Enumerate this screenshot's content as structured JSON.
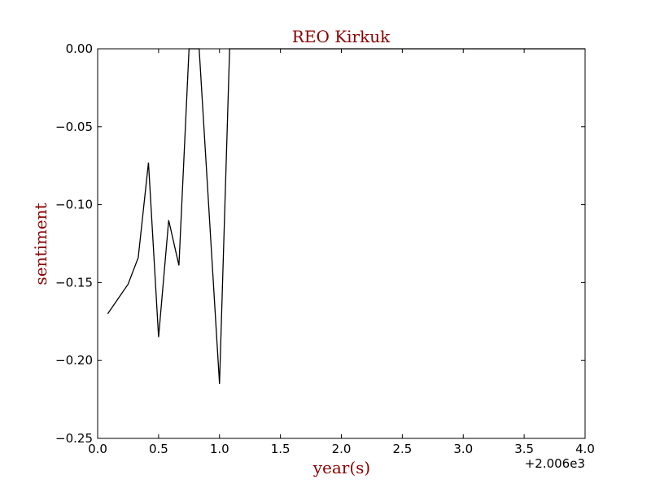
{
  "chart_data": {
    "type": "line",
    "title": "REO Kirkuk",
    "xlabel": "year(s)",
    "ylabel": "sentiment",
    "x_offset_label": "+2.006e3",
    "xlim": [
      0.0,
      4.0
    ],
    "ylim": [
      -0.25,
      0.0
    ],
    "x_ticks": [
      0.0,
      0.5,
      1.0,
      1.5,
      2.0,
      2.5,
      3.0,
      3.5,
      4.0
    ],
    "x_tick_labels": [
      "0.0",
      "0.5",
      "1.0",
      "1.5",
      "2.0",
      "2.5",
      "3.0",
      "3.5",
      "4.0"
    ],
    "y_ticks": [
      0.0,
      -0.05,
      -0.1,
      -0.15,
      -0.2,
      -0.25
    ],
    "y_tick_labels": [
      "0.00",
      "−0.05",
      "−0.10",
      "−0.15",
      "−0.20",
      "−0.25"
    ],
    "grid": false,
    "series": [
      {
        "color": "#000000",
        "x": [
          0.083,
          0.25,
          0.333,
          0.417,
          0.5,
          0.583,
          0.667,
          0.75,
          0.833,
          1.0,
          1.083,
          1.5,
          2.0,
          2.5,
          3.0,
          3.5,
          4.0
        ],
        "y": [
          -0.17,
          -0.151,
          -0.134,
          -0.073,
          -0.185,
          -0.11,
          -0.139,
          0.0,
          0.0,
          -0.215,
          0.0,
          0.0,
          0.0,
          0.0,
          0.0,
          0.0,
          0.0
        ]
      }
    ]
  }
}
